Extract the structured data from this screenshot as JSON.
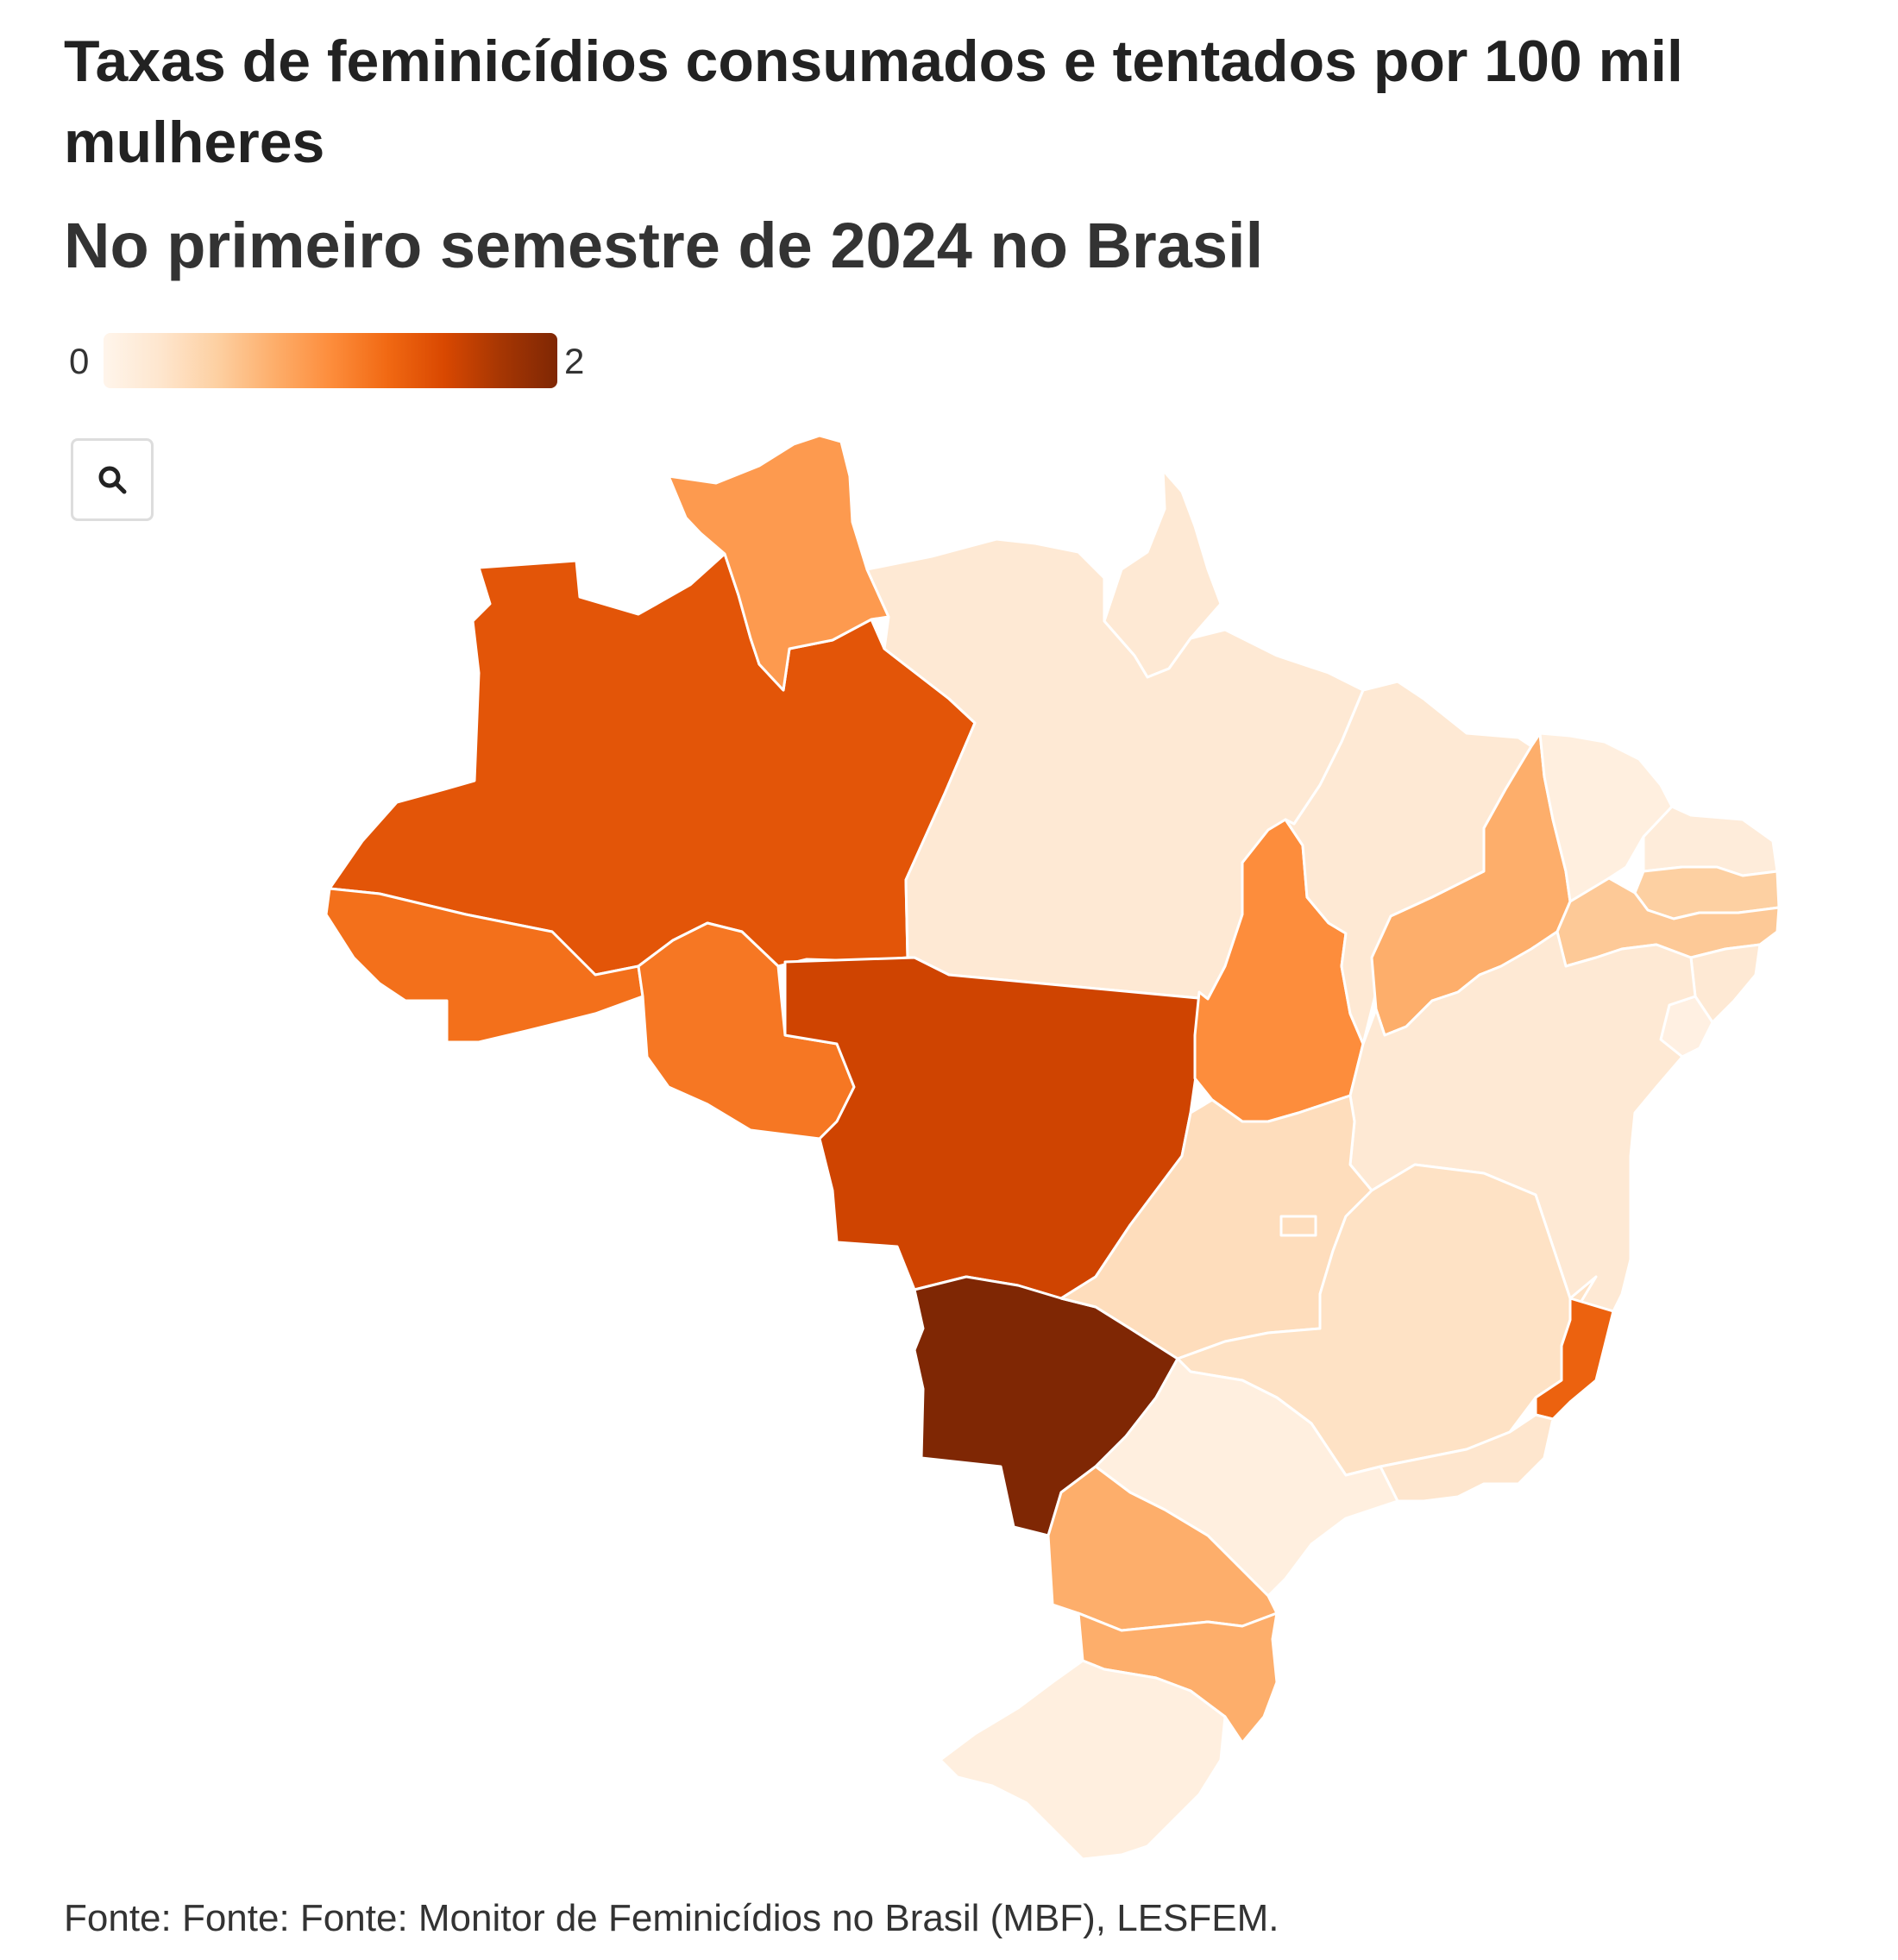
{
  "header": {
    "title": "Taxas de feminicídios consumados e tentados por 100 mil mulheres",
    "subtitle": "No primeiro semestre de 2024 no Brasil"
  },
  "legend": {
    "min_label": "0",
    "max_label": "2",
    "gradient_colors": [
      "#fff5eb",
      "#fee6ce",
      "#fdd0a2",
      "#fdae6b",
      "#fd8d3c",
      "#f16913",
      "#d94801",
      "#a63603",
      "#7f2704"
    ]
  },
  "controls": {
    "zoom_icon": "search-icon"
  },
  "footer": {
    "source": "Fonte: Fonte: Fonte: Monitor de Feminicídios no Brasil (MBF), LESFEM."
  },
  "chart_data": {
    "type": "choropleth",
    "title": "Taxas de feminicídios consumados e tentados por 100 mil mulheres",
    "subtitle": "No primeiro semestre de 2024 no Brasil",
    "region": "Brasil",
    "value_range": [
      0,
      2
    ],
    "states": [
      {
        "code": "AC",
        "value": 1.2
      },
      {
        "code": "AM",
        "value": 1.4
      },
      {
        "code": "RR",
        "value": 0.9
      },
      {
        "code": "AP",
        "value": 0.2
      },
      {
        "code": "PA",
        "value": 0.2
      },
      {
        "code": "RO",
        "value": 1.15
      },
      {
        "code": "MT",
        "value": 1.55
      },
      {
        "code": "MS",
        "value": 2.0
      },
      {
        "code": "TO",
        "value": 1.0
      },
      {
        "code": "MA",
        "value": 0.2
      },
      {
        "code": "PI",
        "value": 0.75
      },
      {
        "code": "CE",
        "value": 0.1
      },
      {
        "code": "RN",
        "value": 0.15
      },
      {
        "code": "PB",
        "value": 0.5
      },
      {
        "code": "PE",
        "value": 0.55
      },
      {
        "code": "AL",
        "value": 0.2
      },
      {
        "code": "SE",
        "value": 0.08
      },
      {
        "code": "BA",
        "value": 0.2
      },
      {
        "code": "GO",
        "value": 0.35
      },
      {
        "code": "DF",
        "value": 0.35
      },
      {
        "code": "MG",
        "value": 0.3
      },
      {
        "code": "ES",
        "value": 1.3
      },
      {
        "code": "RJ",
        "value": 0.25
      },
      {
        "code": "SP",
        "value": 0.1
      },
      {
        "code": "PR",
        "value": 0.75
      },
      {
        "code": "SC",
        "value": 0.75
      },
      {
        "code": "RS",
        "value": 0.1
      }
    ]
  }
}
